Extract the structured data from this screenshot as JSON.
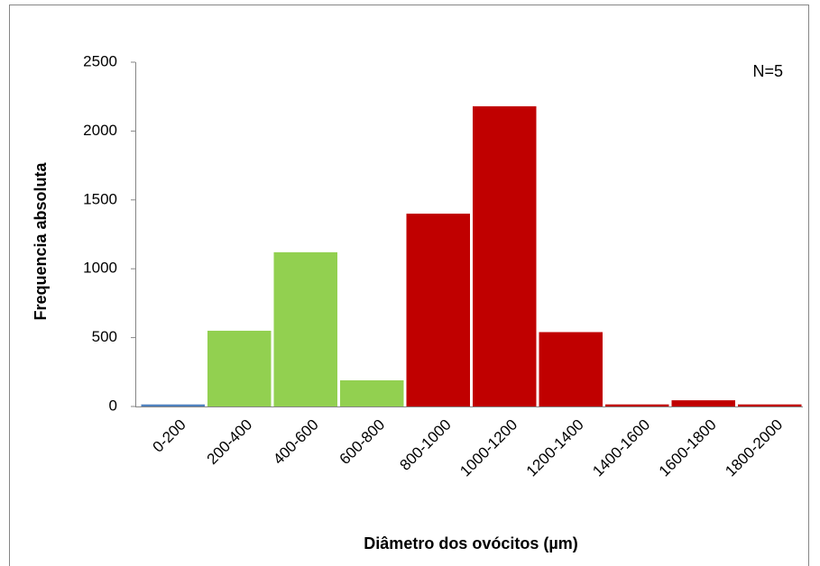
{
  "chart_data": {
    "type": "bar",
    "x_label": "Diâmetro dos ovócitos (µm)",
    "y_label": "Frequencia absoluta",
    "annotation": "N=5",
    "categories": [
      "0-200",
      "200-400",
      "400-600",
      "600-800",
      "800-1000",
      "1000-1200",
      "1200-1400",
      "1400-1600",
      "1600-1800",
      "1800-2000"
    ],
    "values": [
      15,
      550,
      1120,
      190,
      1400,
      2180,
      540,
      15,
      45,
      15
    ],
    "colors": [
      "#4f81bd",
      "#92d050",
      "#92d050",
      "#92d050",
      "#c00000",
      "#c00000",
      "#c00000",
      "#c00000",
      "#c00000",
      "#c00000"
    ],
    "ylim": [
      0,
      2500
    ],
    "yticks": [
      0,
      500,
      1000,
      1500,
      2000,
      2500
    ],
    "grid": false
  }
}
